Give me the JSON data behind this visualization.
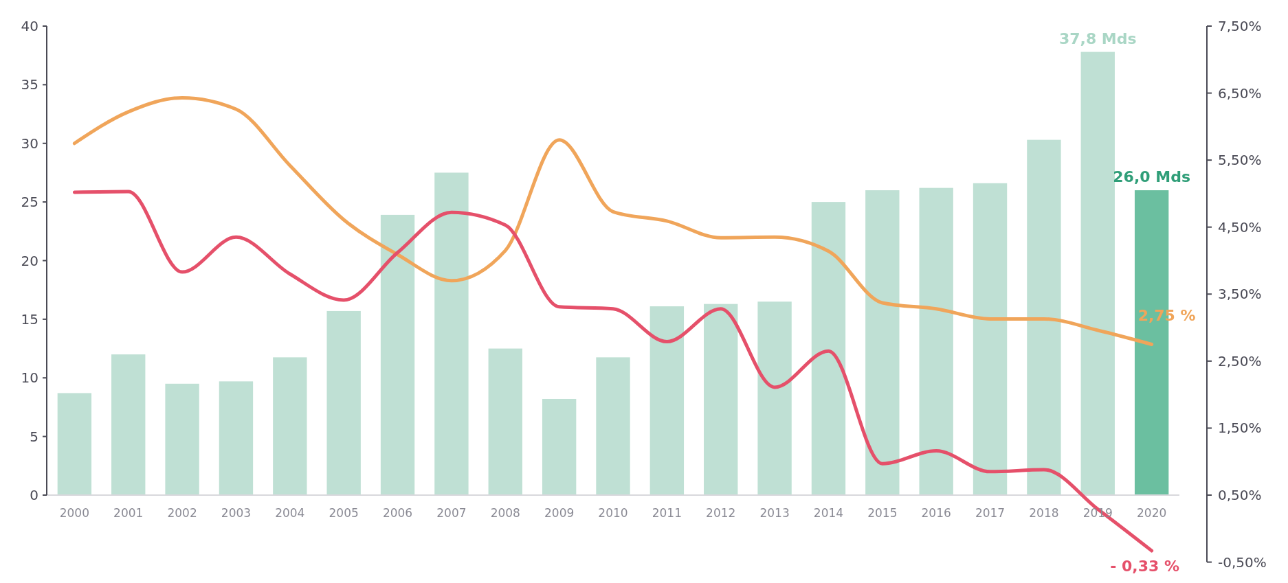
{
  "chart_data": {
    "type": "bar",
    "categories": [
      "2000",
      "2001",
      "2002",
      "2003",
      "2004",
      "2005",
      "2006",
      "2007",
      "2008",
      "2009",
      "2010",
      "2011",
      "2012",
      "2013",
      "2014",
      "2015",
      "2016",
      "2017",
      "2018",
      "2019",
      "2020"
    ],
    "series": [
      {
        "values": [
          8.7,
          12.0,
          9.5,
          9.7,
          11.75,
          15.7,
          23.9,
          27.5,
          12.5,
          8.2,
          11.75,
          16.1,
          16.3,
          16.5,
          25.0,
          26.0,
          26.2,
          26.6,
          30.3,
          37.8,
          26.0
        ],
        "colors": [
          "#bfe0d4",
          "#bfe0d4",
          "#bfe0d4",
          "#bfe0d4",
          "#bfe0d4",
          "#bfe0d4",
          "#bfe0d4",
          "#bfe0d4",
          "#bfe0d4",
          "#bfe0d4",
          "#bfe0d4",
          "#bfe0d4",
          "#bfe0d4",
          "#bfe0d4",
          "#bfe0d4",
          "#bfe0d4",
          "#bfe0d4",
          "#bfe0d4",
          "#bfe0d4",
          "#bfe0d4",
          "#6bbfa0"
        ],
        "value_labels": [
          null,
          null,
          null,
          null,
          null,
          null,
          null,
          null,
          null,
          null,
          null,
          null,
          null,
          null,
          null,
          null,
          null,
          null,
          null,
          "37,8 Mds",
          "26,0 Mds"
        ]
      },
      {
        "type": "line",
        "axis": "y2",
        "color": "#f0a55a",
        "values": [
          5.75,
          6.22,
          6.43,
          6.26,
          5.42,
          4.61,
          4.09,
          3.7,
          4.15,
          5.8,
          4.73,
          4.59,
          4.34,
          4.35,
          4.14,
          3.37,
          3.28,
          3.13,
          3.13,
          2.96,
          2.75
        ],
        "value_labels": [
          null,
          null,
          null,
          null,
          null,
          null,
          null,
          null,
          null,
          null,
          null,
          null,
          null,
          null,
          null,
          null,
          null,
          null,
          null,
          null,
          "2,75 %"
        ]
      },
      {
        "type": "line",
        "axis": "y2",
        "color": "#e5506a",
        "values": [
          5.02,
          5.03,
          3.83,
          4.35,
          3.8,
          3.41,
          4.12,
          4.72,
          4.53,
          3.31,
          3.28,
          2.79,
          3.28,
          2.11,
          2.65,
          0.97,
          1.16,
          0.85,
          0.88,
          0.29,
          -0.33
        ],
        "value_labels": [
          null,
          null,
          null,
          null,
          null,
          null,
          null,
          null,
          null,
          null,
          null,
          null,
          null,
          null,
          null,
          null,
          null,
          null,
          null,
          null,
          "- 0,33 %"
        ]
      }
    ],
    "ylim": [
      0,
      40
    ],
    "yticks": [
      0,
      5,
      10,
      15,
      20,
      25,
      30,
      35,
      40
    ],
    "y2lim": [
      -0.5,
      7.5
    ],
    "y2ticks": [
      {
        "value": -0.5,
        "label": "-0,50%"
      },
      {
        "value": 0.5,
        "label": "0,50%"
      },
      {
        "value": 1.5,
        "label": "1,50%"
      },
      {
        "value": 2.5,
        "label": "2,50%"
      },
      {
        "value": 3.5,
        "label": "3,50%"
      },
      {
        "value": 4.5,
        "label": "4,50%"
      },
      {
        "value": 5.5,
        "label": "5,50%"
      },
      {
        "value": 6.5,
        "label": "6,50%"
      },
      {
        "value": 7.5,
        "label": "7,50%"
      }
    ],
    "grid": false,
    "marker": "none",
    "line_style": "solid"
  }
}
